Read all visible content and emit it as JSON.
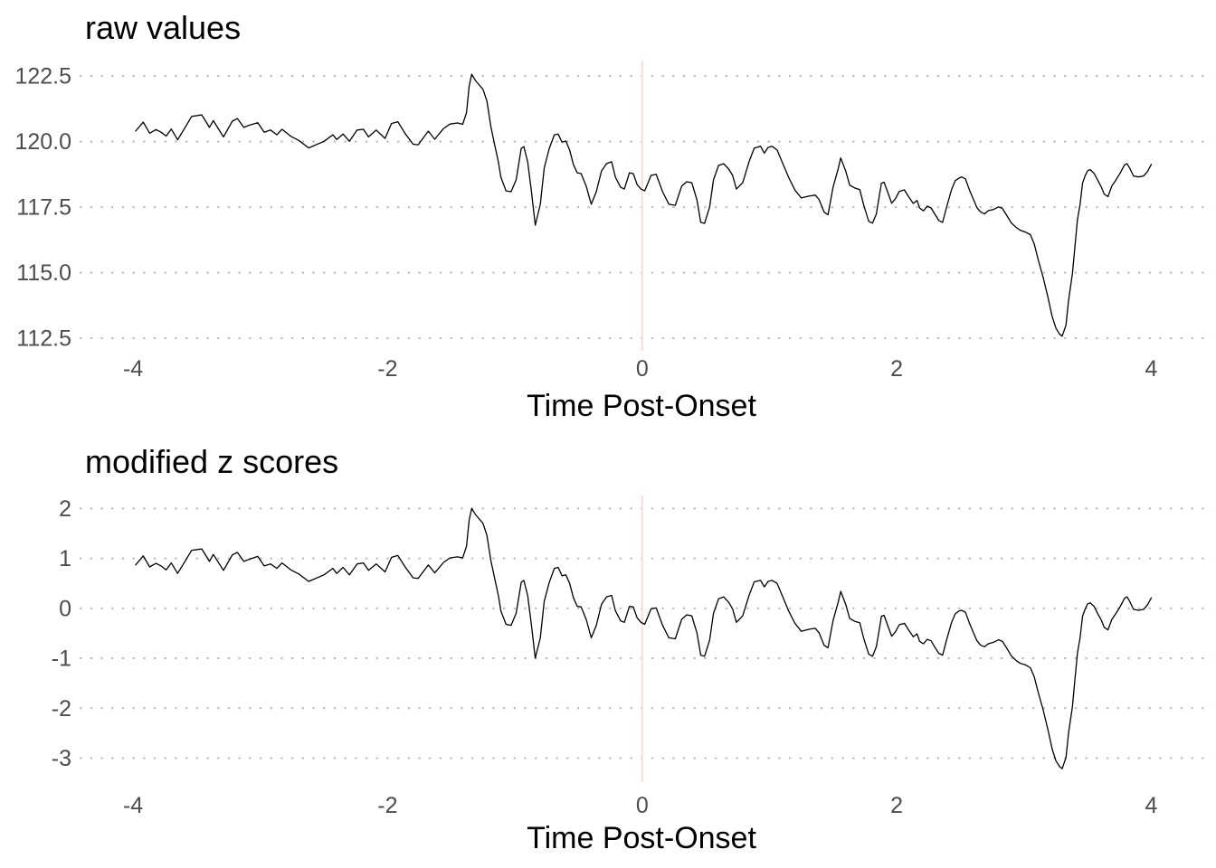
{
  "chart_data": [
    {
      "type": "line",
      "title": "raw values",
      "xlabel": "Time Post-Onset",
      "line_color": "#000000",
      "grid_color": "#b9b9b9",
      "tick_label_color": "#4d4d4d",
      "vline_color": "#fbddd8",
      "vline_x": 0,
      "grid": "dotted-horizontal-only",
      "legend": "none",
      "xlim": [
        -4.42,
        4.48
      ],
      "ylim": [
        112.02,
        123.09
      ],
      "x_ticks": [
        -4,
        -2,
        0,
        2,
        4
      ],
      "x_tick_labels": [
        "-4",
        "-2",
        "0",
        "2",
        "4"
      ],
      "y_ticks": [
        112.5,
        115.0,
        117.5,
        120.0,
        122.5
      ],
      "y_tick_labels": [
        "112.5",
        "115.0",
        "117.5",
        "120.0",
        "122.5"
      ],
      "x": [
        -3.98,
        -3.92,
        -3.87,
        -3.82,
        -3.78,
        -3.74,
        -3.7,
        -3.65,
        -3.59,
        -3.54,
        -3.46,
        -3.4,
        -3.37,
        -3.29,
        -3.22,
        -3.18,
        -3.13,
        -3.09,
        -3.02,
        -2.97,
        -2.92,
        -2.87,
        -2.83,
        -2.76,
        -2.7,
        -2.62,
        -2.5,
        -2.43,
        -2.4,
        -2.35,
        -2.3,
        -2.24,
        -2.19,
        -2.15,
        -2.09,
        -2.02,
        -1.97,
        -1.92,
        -1.86,
        -1.8,
        -1.76,
        -1.68,
        -1.63,
        -1.56,
        -1.51,
        -1.45,
        -1.41,
        -1.38,
        -1.36,
        -1.34,
        -1.31,
        -1.28,
        -1.25,
        -1.22,
        -1.19,
        -1.16,
        -1.13,
        -1.11,
        -1.07,
        -1.03,
        -0.99,
        -0.95,
        -0.93,
        -0.9,
        -0.87,
        -0.84,
        -0.8,
        -0.77,
        -0.73,
        -0.69,
        -0.66,
        -0.63,
        -0.6,
        -0.57,
        -0.54,
        -0.51,
        -0.48,
        -0.44,
        -0.4,
        -0.36,
        -0.32,
        -0.28,
        -0.24,
        -0.21,
        -0.17,
        -0.14,
        -0.1,
        -0.07,
        -0.04,
        -0.01,
        0.02,
        0.07,
        0.11,
        0.16,
        0.21,
        0.26,
        0.31,
        0.35,
        0.39,
        0.43,
        0.46,
        0.49,
        0.53,
        0.56,
        0.6,
        0.64,
        0.68,
        0.71,
        0.74,
        0.79,
        0.84,
        0.88,
        0.93,
        0.96,
        0.99,
        1.02,
        1.06,
        1.1,
        1.15,
        1.2,
        1.25,
        1.31,
        1.36,
        1.39,
        1.43,
        1.46,
        1.5,
        1.54,
        1.56,
        1.6,
        1.63,
        1.67,
        1.71,
        1.74,
        1.78,
        1.81,
        1.84,
        1.86,
        1.88,
        1.9,
        1.93,
        1.96,
        1.99,
        2.02,
        2.06,
        2.09,
        2.13,
        2.16,
        2.18,
        2.21,
        2.24,
        2.27,
        2.3,
        2.33,
        2.36,
        2.39,
        2.43,
        2.46,
        2.49,
        2.51,
        2.54,
        2.57,
        2.6,
        2.63,
        2.66,
        2.69,
        2.72,
        2.76,
        2.8,
        2.83,
        2.87,
        2.9,
        2.94,
        2.97,
        3.01,
        3.05,
        3.08,
        3.11,
        3.15,
        3.19,
        3.22,
        3.25,
        3.28,
        3.3,
        3.33,
        3.35,
        3.38,
        3.4,
        3.42,
        3.44,
        3.46,
        3.48,
        3.5,
        3.52,
        3.55,
        3.58,
        3.61,
        3.63,
        3.66,
        3.69,
        3.72,
        3.75,
        3.79,
        3.81,
        3.83,
        3.86,
        3.9,
        3.94,
        3.97,
        4.0
      ],
      "values": [
        120.4,
        120.74,
        120.32,
        120.46,
        120.36,
        120.21,
        120.48,
        120.07,
        120.55,
        120.96,
        121.02,
        120.54,
        120.8,
        120.18,
        120.78,
        120.88,
        120.54,
        120.62,
        120.72,
        120.36,
        120.44,
        120.26,
        120.47,
        120.2,
        120.05,
        119.76,
        120.01,
        120.26,
        120.08,
        120.29,
        120.01,
        120.44,
        120.47,
        120.18,
        120.44,
        120.12,
        120.69,
        120.76,
        120.29,
        119.9,
        119.88,
        120.4,
        120.09,
        120.5,
        120.67,
        120.71,
        120.66,
        121.1,
        122.1,
        122.57,
        122.33,
        122.16,
        121.99,
        121.54,
        120.6,
        119.9,
        119.23,
        118.64,
        118.12,
        118.09,
        118.54,
        119.74,
        119.81,
        119.23,
        118.09,
        116.81,
        117.61,
        118.99,
        119.74,
        120.26,
        120.29,
        119.98,
        120.02,
        119.68,
        119.12,
        118.81,
        118.78,
        118.3,
        117.61,
        118.09,
        118.88,
        119.16,
        119.23,
        118.64,
        118.26,
        118.19,
        118.81,
        118.78,
        118.36,
        118.19,
        118.12,
        118.71,
        118.75,
        118.09,
        117.61,
        117.57,
        118.3,
        118.47,
        118.43,
        117.78,
        116.92,
        116.88,
        117.5,
        118.54,
        119.09,
        119.16,
        118.95,
        118.71,
        118.19,
        118.43,
        119.23,
        119.75,
        119.82,
        119.56,
        119.78,
        119.82,
        119.68,
        119.22,
        118.64,
        118.15,
        117.85,
        117.92,
        117.96,
        117.79,
        117.31,
        117.21,
        118.27,
        118.96,
        119.38,
        118.86,
        118.34,
        118.23,
        118.17,
        117.58,
        116.96,
        116.89,
        117.24,
        117.83,
        118.41,
        118.45,
        118.06,
        117.65,
        117.82,
        118.1,
        118.16,
        117.92,
        117.64,
        117.75,
        117.47,
        117.36,
        117.54,
        117.47,
        117.23,
        116.99,
        116.92,
        117.47,
        118.16,
        118.51,
        118.61,
        118.65,
        118.58,
        118.17,
        117.83,
        117.48,
        117.31,
        117.24,
        117.37,
        117.41,
        117.51,
        117.45,
        117.14,
        116.9,
        116.72,
        116.62,
        116.55,
        116.45,
        116.1,
        115.52,
        114.83,
        114.03,
        113.34,
        112.89,
        112.65,
        112.58,
        113.0,
        113.93,
        114.96,
        116.0,
        117.03,
        117.59,
        118.41,
        118.69,
        118.89,
        118.93,
        118.79,
        118.52,
        118.24,
        118.0,
        117.9,
        118.31,
        118.52,
        118.75,
        119.11,
        119.16,
        118.99,
        118.69,
        118.65,
        118.69,
        118.86,
        119.13
      ]
    },
    {
      "type": "line",
      "title": "modified z scores",
      "xlabel": "Time Post-Onset",
      "line_color": "#000000",
      "grid_color": "#b9b9b9",
      "tick_label_color": "#4d4d4d",
      "vline_color": "#fbddd8",
      "vline_x": 0,
      "grid": "dotted-horizontal-only",
      "legend": "none",
      "xlim": [
        -4.42,
        4.48
      ],
      "ylim": [
        -3.48,
        2.26
      ],
      "x_ticks": [
        -4,
        -2,
        0,
        2,
        4
      ],
      "x_tick_labels": [
        "-4",
        "-2",
        "0",
        "2",
        "4"
      ],
      "y_ticks": [
        -3,
        -2,
        -1,
        0,
        1,
        2
      ],
      "y_tick_labels": [
        "-3",
        "-2",
        "-1",
        "0",
        "1",
        "2"
      ],
      "x": [
        -3.98,
        -3.92,
        -3.87,
        -3.82,
        -3.78,
        -3.74,
        -3.7,
        -3.65,
        -3.59,
        -3.54,
        -3.46,
        -3.4,
        -3.37,
        -3.29,
        -3.22,
        -3.18,
        -3.13,
        -3.09,
        -3.02,
        -2.97,
        -2.92,
        -2.87,
        -2.83,
        -2.76,
        -2.7,
        -2.62,
        -2.5,
        -2.43,
        -2.4,
        -2.35,
        -2.3,
        -2.24,
        -2.19,
        -2.15,
        -2.09,
        -2.02,
        -1.97,
        -1.92,
        -1.86,
        -1.8,
        -1.76,
        -1.68,
        -1.63,
        -1.56,
        -1.51,
        -1.45,
        -1.41,
        -1.38,
        -1.36,
        -1.34,
        -1.31,
        -1.28,
        -1.25,
        -1.22,
        -1.19,
        -1.16,
        -1.13,
        -1.11,
        -1.07,
        -1.03,
        -0.99,
        -0.95,
        -0.93,
        -0.9,
        -0.87,
        -0.84,
        -0.8,
        -0.77,
        -0.73,
        -0.69,
        -0.66,
        -0.63,
        -0.6,
        -0.57,
        -0.54,
        -0.51,
        -0.48,
        -0.44,
        -0.4,
        -0.36,
        -0.32,
        -0.28,
        -0.24,
        -0.21,
        -0.17,
        -0.14,
        -0.1,
        -0.07,
        -0.04,
        -0.01,
        0.02,
        0.07,
        0.11,
        0.16,
        0.21,
        0.26,
        0.31,
        0.35,
        0.39,
        0.43,
        0.46,
        0.49,
        0.53,
        0.56,
        0.6,
        0.64,
        0.68,
        0.71,
        0.74,
        0.79,
        0.84,
        0.88,
        0.93,
        0.96,
        0.99,
        1.02,
        1.06,
        1.1,
        1.15,
        1.2,
        1.25,
        1.31,
        1.36,
        1.39,
        1.43,
        1.46,
        1.5,
        1.54,
        1.56,
        1.6,
        1.63,
        1.67,
        1.71,
        1.74,
        1.78,
        1.81,
        1.84,
        1.86,
        1.88,
        1.9,
        1.93,
        1.96,
        1.99,
        2.02,
        2.06,
        2.09,
        2.13,
        2.16,
        2.18,
        2.21,
        2.24,
        2.27,
        2.3,
        2.33,
        2.36,
        2.39,
        2.43,
        2.46,
        2.49,
        2.51,
        2.54,
        2.57,
        2.6,
        2.63,
        2.66,
        2.69,
        2.72,
        2.76,
        2.8,
        2.83,
        2.87,
        2.9,
        2.94,
        2.97,
        3.01,
        3.05,
        3.08,
        3.11,
        3.15,
        3.19,
        3.22,
        3.25,
        3.28,
        3.3,
        3.33,
        3.35,
        3.38,
        3.4,
        3.42,
        3.44,
        3.46,
        3.48,
        3.5,
        3.52,
        3.55,
        3.58,
        3.61,
        3.63,
        3.66,
        3.69,
        3.72,
        3.75,
        3.79,
        3.81,
        3.83,
        3.86,
        3.9,
        3.94,
        3.97,
        4.0
      ],
      "values": [
        0.87,
        1.05,
        0.83,
        0.9,
        0.85,
        0.77,
        0.91,
        0.7,
        0.95,
        1.16,
        1.19,
        0.94,
        1.08,
        0.76,
        1.07,
        1.12,
        0.94,
        0.98,
        1.04,
        0.85,
        0.89,
        0.8,
        0.91,
        0.77,
        0.69,
        0.54,
        0.67,
        0.8,
        0.7,
        0.82,
        0.67,
        0.89,
        0.91,
        0.76,
        0.89,
        0.73,
        1.02,
        1.06,
        0.82,
        0.61,
        0.6,
        0.87,
        0.71,
        0.92,
        1.01,
        1.03,
        1.01,
        1.24,
        1.76,
        2.0,
        1.88,
        1.79,
        1.7,
        1.46,
        0.97,
        0.61,
        0.26,
        -0.05,
        -0.32,
        -0.34,
        -0.1,
        0.52,
        0.56,
        0.26,
        -0.34,
        -1.0,
        -0.59,
        0.14,
        0.52,
        0.8,
        0.82,
        0.65,
        0.67,
        0.5,
        0.21,
        0.04,
        0.03,
        -0.22,
        -0.59,
        -0.34,
        0.08,
        0.23,
        0.26,
        -0.05,
        -0.25,
        -0.28,
        0.04,
        0.03,
        -0.19,
        -0.28,
        -0.32,
        -0.01,
        0.01,
        -0.34,
        -0.59,
        -0.61,
        -0.22,
        -0.13,
        -0.15,
        -0.49,
        -0.94,
        -0.96,
        -0.64,
        -0.1,
        0.19,
        0.23,
        0.12,
        -0.01,
        -0.28,
        -0.15,
        0.26,
        0.53,
        0.56,
        0.43,
        0.54,
        0.56,
        0.5,
        0.26,
        -0.05,
        -0.3,
        -0.46,
        -0.42,
        -0.4,
        -0.49,
        -0.74,
        -0.79,
        -0.24,
        0.12,
        0.34,
        0.07,
        -0.2,
        -0.26,
        -0.29,
        -0.6,
        -0.92,
        -0.96,
        -0.77,
        -0.47,
        -0.16,
        -0.14,
        -0.35,
        -0.56,
        -0.47,
        -0.33,
        -0.3,
        -0.42,
        -0.57,
        -0.51,
        -0.66,
        -0.71,
        -0.62,
        -0.65,
        -0.78,
        -0.9,
        -0.94,
        -0.65,
        -0.29,
        -0.11,
        -0.05,
        -0.04,
        -0.08,
        -0.29,
        -0.47,
        -0.65,
        -0.74,
        -0.77,
        -0.71,
        -0.68,
        -0.63,
        -0.66,
        -0.82,
        -0.95,
        -1.05,
        -1.1,
        -1.13,
        -1.19,
        -1.37,
        -1.67,
        -2.03,
        -2.45,
        -2.81,
        -3.05,
        -3.17,
        -3.21,
        -2.99,
        -2.5,
        -1.97,
        -1.42,
        -0.89,
        -0.6,
        -0.16,
        -0.02,
        0.09,
        0.11,
        0.04,
        -0.11,
        -0.25,
        -0.38,
        -0.43,
        -0.22,
        -0.11,
        0.01,
        0.2,
        0.23,
        0.14,
        -0.02,
        -0.04,
        -0.02,
        0.07,
        0.21
      ]
    }
  ]
}
